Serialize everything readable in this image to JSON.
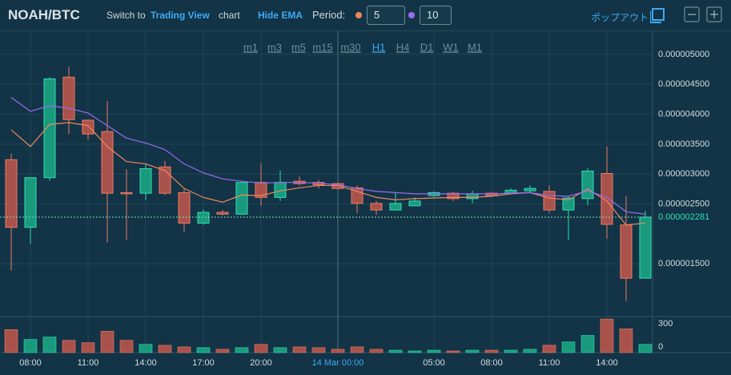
{
  "ui": {
    "switch_text": "Switch to",
    "tv_link": "Trading View",
    "chart_word": "chart",
    "hide_ema": "Hide EMA",
    "period_label": "Period:",
    "popout": "ポップアウト",
    "timeframes": [
      "m1",
      "m3",
      "m5",
      "m15",
      "m30",
      "H1",
      "H4",
      "D1",
      "W1",
      "M1"
    ],
    "active_timeframe": "H1"
  },
  "chart_data": {
    "type": "candlestick",
    "title": "NOAH/BTC",
    "categories": [
      null,
      "08:00",
      null,
      null,
      "11:00",
      null,
      null,
      "14:00",
      null,
      null,
      "17:00",
      null,
      null,
      "20:00",
      null,
      null,
      null,
      "14 Mar 00:00",
      null,
      null,
      null,
      null,
      "05:00",
      null,
      null,
      "08:00",
      null,
      null,
      "11:00",
      null,
      null,
      "14:00",
      null,
      null
    ],
    "open": [
      3.24e-06,
      2.11e-06,
      2.94e-06,
      4.62e-06,
      3.9e-06,
      3.71e-06,
      2.69e-06,
      2.68e-06,
      3.12e-06,
      2.69e-06,
      2.18e-06,
      2.36e-06,
      2.33e-06,
      2.86e-06,
      2.61e-06,
      2.88e-06,
      2.86e-06,
      2.84e-06,
      2.77e-06,
      2.51e-06,
      2.4e-06,
      2.47e-06,
      2.64e-06,
      2.68e-06,
      2.59e-06,
      2.68e-06,
      2.68e-06,
      2.72e-06,
      2.71e-06,
      2.4e-06,
      2.59e-06,
      3.01e-06,
      2.15e-06,
      1.26e-06
    ],
    "high": [
      3.34e-06,
      2.94e-06,
      4.62e-06,
      4.79e-06,
      3.91e-06,
      4.22e-06,
      3.08e-06,
      3.18e-06,
      3.22e-06,
      2.75e-06,
      2.41e-06,
      2.4e-06,
      2.86e-06,
      3.18e-06,
      3.06e-06,
      2.96e-06,
      2.9e-06,
      2.86e-06,
      2.81e-06,
      2.55e-06,
      2.69e-06,
      2.61e-06,
      2.71e-06,
      2.7e-06,
      2.72e-06,
      2.7e-06,
      2.76e-06,
      2.81e-06,
      2.81e-06,
      2.63e-06,
      3.1e-06,
      3.46e-06,
      2.64e-06,
      2.38e-06
    ],
    "low": [
      1.39e-06,
      1.83e-06,
      2.89e-06,
      3.67e-06,
      3.58e-06,
      1.86e-06,
      1.9e-06,
      2.57e-06,
      2.65e-06,
      2.03e-06,
      2.15e-06,
      2.31e-06,
      2.32e-06,
      2.47e-06,
      2.55e-06,
      2.81e-06,
      2.76e-06,
      2.74e-06,
      2.35e-06,
      2.32e-06,
      2.39e-06,
      2.51e-06,
      2.61e-06,
      2.55e-06,
      2.51e-06,
      2.62e-06,
      2.67e-06,
      2.69e-06,
      2.35e-06,
      1.9e-06,
      2.48e-06,
      1.92e-06,
      8.8e-07,
      1.26e-06
    ],
    "close": [
      2.11e-06,
      2.94e-06,
      4.59e-06,
      3.91e-06,
      3.67e-06,
      2.68e-06,
      2.67e-06,
      3.09e-06,
      2.68e-06,
      2.18e-06,
      2.36e-06,
      2.33e-06,
      2.86e-06,
      2.61e-06,
      2.86e-06,
      2.84e-06,
      2.82e-06,
      2.76e-06,
      2.51e-06,
      2.4e-06,
      2.51e-06,
      2.55e-06,
      2.69e-06,
      2.59e-06,
      2.67e-06,
      2.64e-06,
      2.73e-06,
      2.76e-06,
      2.4e-06,
      2.6e-06,
      3.05e-06,
      2.16e-06,
      1.26e-06,
      2.281e-06
    ],
    "volume": [
      210,
      120,
      142,
      112,
      90,
      195,
      112,
      75,
      67,
      52,
      45,
      30,
      45,
      75,
      45,
      52,
      45,
      30,
      52,
      30,
      22,
      15,
      22,
      15,
      22,
      22,
      22,
      30,
      67,
      97,
      157,
      307,
      217,
      75
    ],
    "ema": [
      {
        "period": 5,
        "color": "#f0875f",
        "values": [
          3.74e-06,
          3.46e-06,
          3.83e-06,
          3.86e-06,
          3.81e-06,
          3.46e-06,
          3.21e-06,
          3.17e-06,
          3.06e-06,
          2.76e-06,
          2.61e-06,
          2.53e-06,
          2.65e-06,
          2.64e-06,
          2.72e-06,
          2.77e-06,
          2.81e-06,
          2.81e-06,
          2.71e-06,
          2.61e-06,
          2.57e-06,
          2.59e-06,
          2.6e-06,
          2.61e-06,
          2.61e-06,
          2.63e-06,
          2.67e-06,
          2.69e-06,
          2.6e-06,
          2.57e-06,
          2.75e-06,
          2.55e-06,
          2.15e-06,
          2.18e-06
        ]
      },
      {
        "period": 10,
        "color": "#9b6cf0",
        "values": [
          4.28e-06,
          4.05e-06,
          4.14e-06,
          4.1e-06,
          4.02e-06,
          3.81e-06,
          3.6e-06,
          3.52e-06,
          3.41e-06,
          3.17e-06,
          3.02e-06,
          2.92e-06,
          2.88e-06,
          2.85e-06,
          2.86e-06,
          2.86e-06,
          2.85e-06,
          2.82e-06,
          2.76e-06,
          2.71e-06,
          2.69e-06,
          2.67e-06,
          2.67e-06,
          2.67e-06,
          2.67e-06,
          2.67e-06,
          2.68e-06,
          2.69e-06,
          2.64e-06,
          2.63e-06,
          2.72e-06,
          2.61e-06,
          2.37e-06,
          2.33e-06
        ]
      }
    ],
    "up_color": "#1a9a7c",
    "down_color": "#a9524b",
    "up_edge": "#2fe0b5",
    "down_edge": "#f07a66",
    "ylim": [
      6.6e-07,
      5.4e-06
    ],
    "yticks": [
      {
        "value": 1.5e-06,
        "label": "0.000001500"
      },
      {
        "value": 2.5e-06,
        "label": "0.000002500"
      },
      {
        "value": 3e-06,
        "label": "0.000003000"
      },
      {
        "value": 3.5e-06,
        "label": "0.000003500"
      },
      {
        "value": 4e-06,
        "label": "0.000004000"
      },
      {
        "value": 4.5e-06,
        "label": "0.000004500"
      },
      {
        "value": 5e-06,
        "label": "0.000005000"
      }
    ],
    "y2lim": [
      0,
      330
    ],
    "y2ticks": [
      0,
      300
    ],
    "last_price": 2.281e-06,
    "grid": true
  }
}
